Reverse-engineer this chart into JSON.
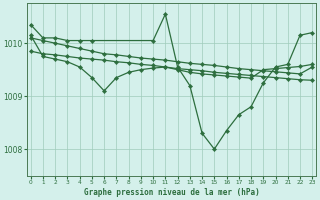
{
  "title": "Graphe pression niveau de la mer (hPa)",
  "background_color": "#d4f0eb",
  "grid_color": "#a0ccbb",
  "line_color": "#2d6e3e",
  "figsize": [
    3.2,
    2.0
  ],
  "dpi": 100,
  "yticks": [
    1008,
    1009,
    1010
  ],
  "xticks": [
    0,
    1,
    2,
    3,
    4,
    5,
    6,
    7,
    8,
    9,
    10,
    11,
    12,
    13,
    14,
    15,
    16,
    17,
    18,
    19,
    20,
    21,
    22,
    23
  ],
  "ylim": [
    1007.5,
    1010.75
  ],
  "xlim": [
    -0.3,
    23.3
  ],
  "series": [
    {
      "x": [
        0,
        1,
        2,
        3,
        4,
        5,
        10,
        11,
        12,
        13,
        14,
        15,
        16,
        17,
        18,
        19,
        20,
        21,
        22,
        23
      ],
      "y": [
        1010.35,
        1010.1,
        1010.1,
        1010.05,
        1010.05,
        1010.05,
        1010.05,
        1010.55,
        1009.55,
        1009.2,
        1008.3,
        1008.0,
        1008.35,
        1008.65,
        1008.8,
        1009.25,
        1009.55,
        1009.6,
        1010.15,
        1010.2
      ]
    },
    {
      "x": [
        0,
        1,
        2,
        3,
        4,
        5,
        6,
        7,
        8,
        9,
        10,
        11,
        12,
        13,
        14,
        15,
        16,
        17,
        18,
        19,
        20,
        21,
        22,
        23
      ],
      "y": [
        1010.1,
        1010.05,
        1010.0,
        1009.95,
        1009.9,
        1009.85,
        1009.8,
        1009.78,
        1009.75,
        1009.72,
        1009.7,
        1009.68,
        1009.65,
        1009.62,
        1009.6,
        1009.58,
        1009.55,
        1009.52,
        1009.5,
        1009.48,
        1009.46,
        1009.44,
        1009.42,
        1009.55
      ]
    },
    {
      "x": [
        0,
        1,
        2,
        3,
        4,
        5,
        6,
        7,
        8,
        9,
        10,
        11,
        12,
        13,
        14,
        15,
        16,
        17,
        18,
        19,
        20,
        21,
        22,
        23
      ],
      "y": [
        1009.85,
        1009.8,
        1009.78,
        1009.75,
        1009.72,
        1009.7,
        1009.68,
        1009.65,
        1009.63,
        1009.6,
        1009.58,
        1009.55,
        1009.52,
        1009.5,
        1009.48,
        1009.45,
        1009.43,
        1009.41,
        1009.39,
        1009.37,
        1009.35,
        1009.33,
        1009.31,
        1009.3
      ]
    },
    {
      "x": [
        0,
        1,
        2,
        3,
        4,
        5,
        6,
        7,
        8,
        9,
        10,
        11,
        12,
        13,
        14,
        15,
        16,
        17,
        18,
        19,
        20,
        21,
        22,
        23
      ],
      "y": [
        1010.15,
        1009.75,
        1009.7,
        1009.65,
        1009.55,
        1009.35,
        1009.1,
        1009.35,
        1009.45,
        1009.5,
        1009.53,
        1009.55,
        1009.5,
        1009.45,
        1009.42,
        1009.4,
        1009.38,
        1009.36,
        1009.34,
        1009.5,
        1009.52,
        1009.54,
        1009.56,
        1009.6
      ]
    }
  ]
}
